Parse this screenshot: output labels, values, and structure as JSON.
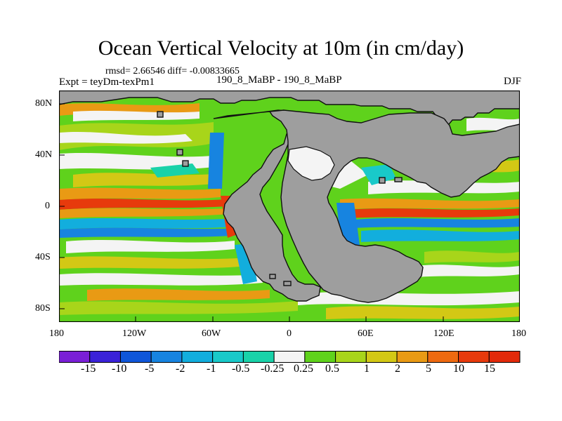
{
  "title": "Ocean Vertical Velocity at 10m (in cm/day)",
  "stats": "rmsd= 2.66546  diff= -0.00833665",
  "experiment": "Expt = teyDm-texPm1",
  "case": "190_8_MaBP - 190_8_MaBP",
  "season": "DJF",
  "x_ticks": [
    "180",
    "120W",
    "60W",
    "0",
    "60E",
    "120E",
    "180"
  ],
  "y_ticks": [
    "80N",
    "40N",
    "0",
    "40S",
    "80S"
  ],
  "colorbar": {
    "labels": [
      "-15",
      "-10",
      "-5",
      "-2",
      "-1",
      "-0.5",
      "-0.25",
      "0.25",
      "0.5",
      "1",
      "2",
      "5",
      "10",
      "15"
    ],
    "colors": [
      "#7a1fd6",
      "#3a22d8",
      "#0f56d9",
      "#1784e0",
      "#12aedd",
      "#19c9c9",
      "#19d2a9",
      "#f4f4f4",
      "#5fd21c",
      "#a8d51a",
      "#d3c815",
      "#e99a14",
      "#ee6a10",
      "#e73a0c",
      "#e22a0a"
    ]
  },
  "land_color": "#9e9e9e",
  "map_colors": {
    "white": "#f4f4f4",
    "green": "#5fd21c",
    "lime": "#a8d51a",
    "yellow": "#d3c815",
    "orange": "#e99a14",
    "red": "#e73a0c",
    "blue": "#1784e0",
    "cyan": "#12aedd",
    "teal": "#19c9c9"
  }
}
